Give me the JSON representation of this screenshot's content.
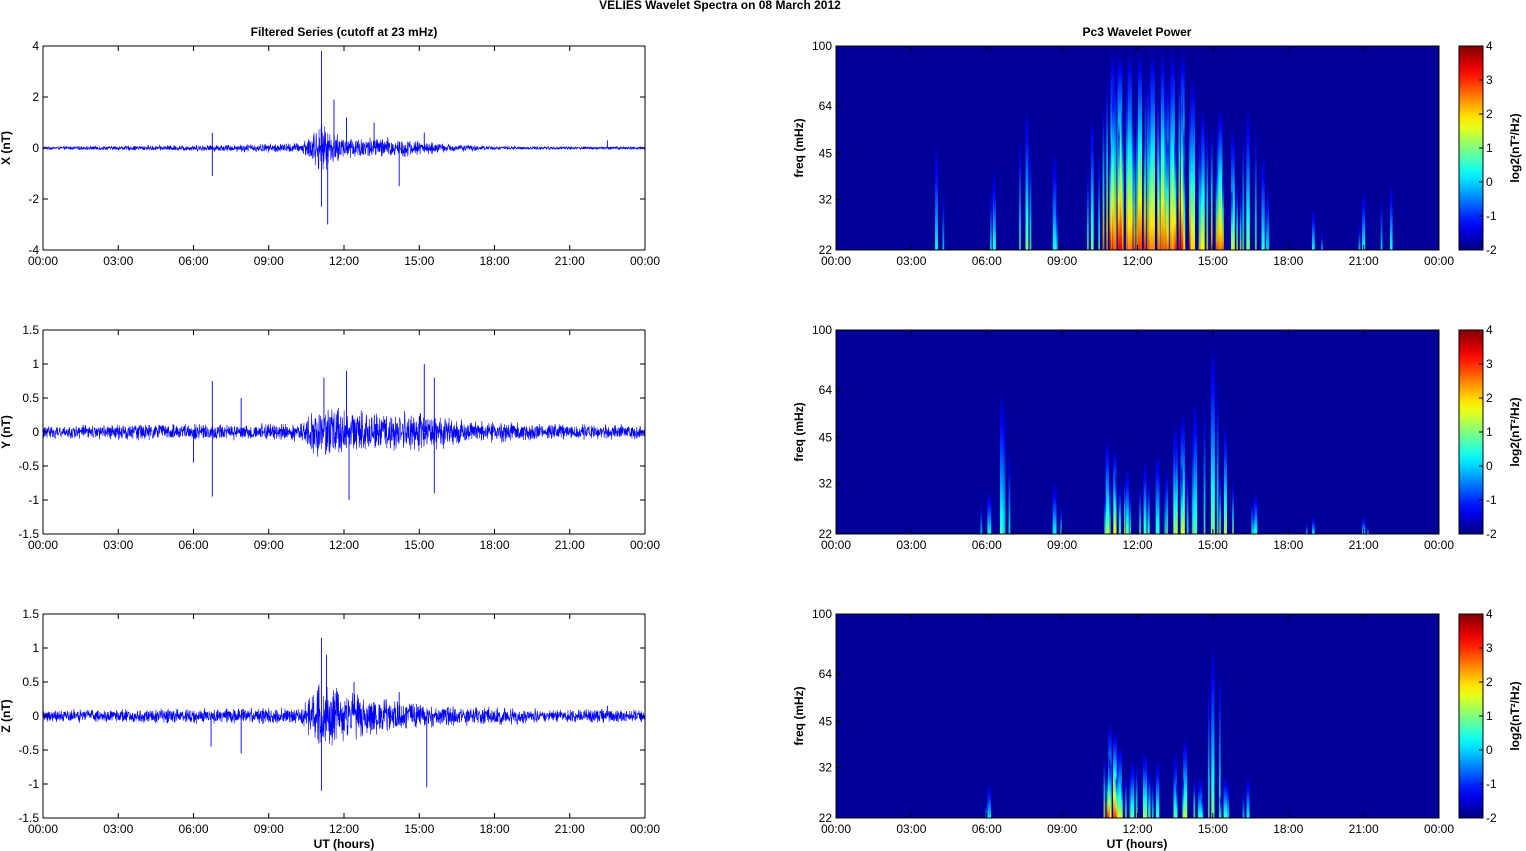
{
  "figure": {
    "title": "VELIES Wavelet Spectra on 08 March      2012",
    "left_title": "Filtered Series (cutoff at 23 mHz)",
    "right_title": "Pc3 Wavelet Power",
    "xlabel": "UT (hours)"
  },
  "colors": {
    "series": "#0000ff",
    "axes": "#000000",
    "background": "#ffffff",
    "colormap": [
      "#00008f",
      "#0000ff",
      "#00ffff",
      "#ffff00",
      "#ff0000",
      "#800000"
    ]
  },
  "chart_data": [
    {
      "type": "line",
      "name": "x-series",
      "ylabel": "X (nT)",
      "ylim": [
        -4,
        4
      ],
      "yticks": [
        -4,
        -2,
        0,
        2,
        4
      ],
      "xlim": [
        0,
        24
      ],
      "xticks": [
        "00:00",
        "03:00",
        "06:00",
        "09:00",
        "12:00",
        "15:00",
        "18:00",
        "21:00",
        "00:00"
      ],
      "noise_envelope": [
        [
          0,
          0.05
        ],
        [
          3.5,
          0.08
        ],
        [
          7.5,
          0.12
        ],
        [
          10.3,
          0.18
        ],
        [
          11.0,
          0.8
        ],
        [
          12.0,
          0.4
        ],
        [
          14.0,
          0.35
        ],
        [
          16.0,
          0.15
        ],
        [
          18.0,
          0.06
        ],
        [
          24,
          0.05
        ]
      ],
      "spikes": [
        [
          11.1,
          3.8
        ],
        [
          11.1,
          -2.3
        ],
        [
          11.35,
          -3.0
        ],
        [
          11.6,
          1.9
        ],
        [
          12.1,
          1.2
        ],
        [
          13.2,
          1.0
        ],
        [
          14.2,
          -1.5
        ],
        [
          15.2,
          0.6
        ],
        [
          6.75,
          0.6
        ],
        [
          6.75,
          -1.1
        ],
        [
          22.5,
          0.3
        ]
      ]
    },
    {
      "type": "heatmap",
      "name": "x-wavelet",
      "ylabel": "freq (mHz)",
      "ylim": [
        22,
        100
      ],
      "yscale": "log",
      "yticks": [
        22,
        32,
        45,
        64,
        100
      ],
      "xlim": [
        0,
        24
      ],
      "xticks": [
        "00:00",
        "03:00",
        "06:00",
        "09:00",
        "12:00",
        "15:00",
        "18:00",
        "21:00",
        "00:00"
      ],
      "colorbar": {
        "label": "log2(nT²/Hz)",
        "range": [
          -2,
          4
        ],
        "ticks": [
          -2,
          -1,
          0,
          1,
          2,
          3,
          4
        ]
      },
      "bursts": [
        [
          4.0,
          0.3,
          48
        ],
        [
          6.3,
          0.5,
          40
        ],
        [
          7.6,
          1.0,
          64
        ],
        [
          8.7,
          0.4,
          45
        ],
        [
          10.2,
          1.0,
          60
        ],
        [
          11.0,
          2.5,
          100
        ],
        [
          11.3,
          3.5,
          100
        ],
        [
          11.7,
          2.5,
          100
        ],
        [
          12.1,
          3.0,
          100
        ],
        [
          12.6,
          2.5,
          100
        ],
        [
          13.0,
          2.8,
          100
        ],
        [
          13.4,
          2.5,
          100
        ],
        [
          13.8,
          3.2,
          100
        ],
        [
          14.2,
          2.0,
          80
        ],
        [
          14.6,
          1.8,
          64
        ],
        [
          15.3,
          2.6,
          64
        ],
        [
          15.8,
          1.5,
          55
        ],
        [
          16.4,
          1.0,
          64
        ],
        [
          17.0,
          0.5,
          45
        ],
        [
          19.0,
          0.3,
          30
        ],
        [
          21.0,
          0.4,
          34
        ],
        [
          22.1,
          0.4,
          36
        ]
      ]
    },
    {
      "type": "line",
      "name": "y-series",
      "ylabel": "Y (nT)",
      "ylim": [
        -1.5,
        1.5
      ],
      "yticks": [
        -1.5,
        -1,
        -0.5,
        0,
        0.5,
        1,
        1.5
      ],
      "xlim": [
        0,
        24
      ],
      "xticks": [
        "00:00",
        "03:00",
        "06:00",
        "09:00",
        "12:00",
        "15:00",
        "18:00",
        "21:00",
        "00:00"
      ],
      "noise_envelope": [
        [
          0,
          0.08
        ],
        [
          4.0,
          0.1
        ],
        [
          7.5,
          0.1
        ],
        [
          10.3,
          0.12
        ],
        [
          11.0,
          0.35
        ],
        [
          12.5,
          0.25
        ],
        [
          15.0,
          0.25
        ],
        [
          17.0,
          0.15
        ],
        [
          20.0,
          0.1
        ],
        [
          24,
          0.09
        ]
      ],
      "spikes": [
        [
          6.75,
          0.75
        ],
        [
          6.75,
          -0.95
        ],
        [
          11.2,
          0.8
        ],
        [
          12.1,
          0.9
        ],
        [
          12.2,
          -1.0
        ],
        [
          15.2,
          1.0
        ],
        [
          15.6,
          0.8
        ],
        [
          15.6,
          -0.9
        ],
        [
          7.9,
          0.5
        ],
        [
          6.0,
          -0.45
        ]
      ]
    },
    {
      "type": "heatmap",
      "name": "y-wavelet",
      "ylabel": "freq (mHz)",
      "ylim": [
        22,
        100
      ],
      "yscale": "log",
      "yticks": [
        22,
        32,
        45,
        64,
        100
      ],
      "xlim": [
        0,
        24
      ],
      "xticks": [
        "00:00",
        "03:00",
        "06:00",
        "09:00",
        "12:00",
        "15:00",
        "18:00",
        "21:00",
        "00:00"
      ],
      "colorbar": {
        "label": "log2(nT²/Hz)",
        "range": [
          -2,
          4
        ],
        "ticks": [
          -2,
          -1,
          0,
          1,
          2,
          3,
          4
        ]
      },
      "bursts": [
        [
          6.1,
          0.3,
          30
        ],
        [
          6.6,
          0.6,
          64
        ],
        [
          8.7,
          0.3,
          32
        ],
        [
          10.8,
          1.2,
          45
        ],
        [
          11.1,
          1.8,
          42
        ],
        [
          11.6,
          0.8,
          36
        ],
        [
          12.3,
          0.8,
          38
        ],
        [
          12.8,
          0.6,
          40
        ],
        [
          13.5,
          1.2,
          50
        ],
        [
          13.8,
          1.5,
          55
        ],
        [
          14.3,
          0.8,
          60
        ],
        [
          15.0,
          1.0,
          90
        ],
        [
          15.5,
          1.3,
          50
        ],
        [
          16.7,
          0.5,
          30
        ],
        [
          19.0,
          0.2,
          25
        ],
        [
          21.0,
          0.2,
          25
        ]
      ]
    },
    {
      "type": "line",
      "name": "z-series",
      "ylabel": "Z (nT)",
      "ylim": [
        -1.5,
        1.5
      ],
      "yticks": [
        -1.5,
        -1,
        -0.5,
        0,
        0.5,
        1,
        1.5
      ],
      "xlim": [
        0,
        24
      ],
      "xticks": [
        "00:00",
        "03:00",
        "06:00",
        "09:00",
        "12:00",
        "15:00",
        "18:00",
        "21:00",
        "00:00"
      ],
      "noise_envelope": [
        [
          0,
          0.08
        ],
        [
          4.0,
          0.09
        ],
        [
          7.5,
          0.1
        ],
        [
          10.3,
          0.1
        ],
        [
          11.0,
          0.45
        ],
        [
          12.0,
          0.3
        ],
        [
          14.0,
          0.2
        ],
        [
          16.0,
          0.13
        ],
        [
          20.0,
          0.09
        ],
        [
          24,
          0.08
        ]
      ],
      "spikes": [
        [
          11.1,
          1.15
        ],
        [
          11.1,
          -1.1
        ],
        [
          11.3,
          0.9
        ],
        [
          12.4,
          0.5
        ],
        [
          15.3,
          -1.05
        ],
        [
          6.7,
          -0.45
        ],
        [
          7.9,
          -0.55
        ],
        [
          14.2,
          0.35
        ],
        [
          22.5,
          0.15
        ]
      ]
    },
    {
      "type": "heatmap",
      "name": "z-wavelet",
      "ylabel": "freq (mHz)",
      "ylim": [
        22,
        100
      ],
      "yscale": "log",
      "yticks": [
        22,
        32,
        45,
        64,
        100
      ],
      "xlim": [
        0,
        24
      ],
      "xticks": [
        "00:00",
        "03:00",
        "06:00",
        "09:00",
        "12:00",
        "15:00",
        "18:00",
        "21:00",
        "00:00"
      ],
      "colorbar": {
        "label": "log2(nT²/Hz)",
        "range": [
          -2,
          4
        ],
        "ticks": [
          -2,
          -1,
          0,
          1,
          2,
          3,
          4
        ]
      },
      "bursts": [
        [
          6.1,
          0.2,
          28
        ],
        [
          10.9,
          2.0,
          45
        ],
        [
          11.1,
          3.0,
          42
        ],
        [
          11.3,
          1.5,
          38
        ],
        [
          11.8,
          0.9,
          34
        ],
        [
          12.3,
          1.2,
          36
        ],
        [
          12.8,
          0.7,
          34
        ],
        [
          13.5,
          0.9,
          36
        ],
        [
          13.9,
          1.4,
          40
        ],
        [
          14.5,
          0.6,
          30
        ],
        [
          15.0,
          1.0,
          80
        ],
        [
          15.5,
          0.7,
          30
        ],
        [
          16.4,
          0.3,
          30
        ]
      ]
    }
  ]
}
